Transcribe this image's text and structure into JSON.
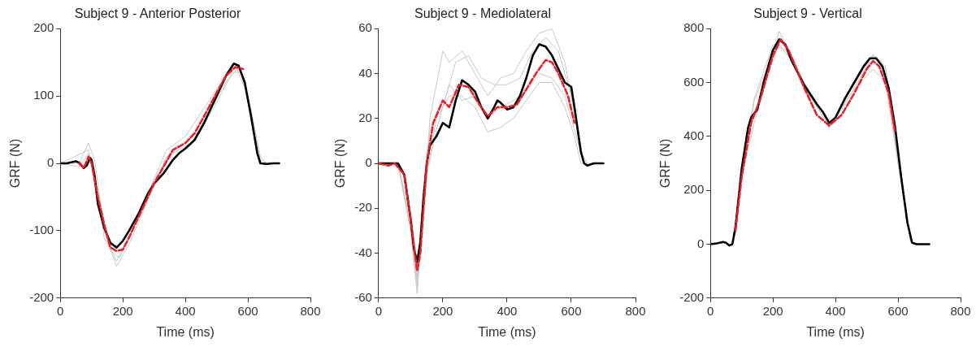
{
  "chart_data": [
    {
      "type": "line",
      "title": "Subject 9 - Anterior Posterior",
      "xlabel": "Time (ms)",
      "ylabel": "GRF (N)",
      "xlim": [
        0,
        800
      ],
      "xticks": [
        0,
        200,
        400,
        600,
        800
      ],
      "ylim": [
        -200,
        200
      ],
      "yticks": [
        -200,
        -100,
        0,
        100,
        200
      ],
      "grid": false,
      "legend": false,
      "marker": "none",
      "series": [
        {
          "color": "#c8c8c8",
          "x": [
            0,
            60,
            90,
            110,
            140,
            180,
            220,
            280,
            340,
            400,
            450,
            500,
            550,
            580,
            610,
            640,
            660
          ],
          "values": [
            0,
            0,
            30,
            5,
            -100,
            -153,
            -120,
            -55,
            10,
            30,
            50,
            90,
            135,
            135,
            80,
            5,
            0
          ]
        },
        {
          "color": "#c8c8c8",
          "x": [
            0,
            60,
            90,
            110,
            140,
            180,
            220,
            280,
            340,
            400,
            450,
            500,
            550,
            575,
            610,
            640
          ],
          "values": [
            0,
            -5,
            15,
            -10,
            -110,
            -145,
            -110,
            -45,
            20,
            40,
            75,
            110,
            140,
            142,
            70,
            0
          ]
        },
        {
          "color": "#c8c8c8",
          "x": [
            0,
            90,
            120,
            160,
            190,
            240,
            300,
            360,
            420,
            480,
            530,
            565,
            600,
            640,
            660
          ],
          "values": [
            0,
            20,
            -40,
            -130,
            -140,
            -90,
            -25,
            15,
            30,
            80,
            120,
            140,
            100,
            10,
            0
          ]
        },
        {
          "color": "#000000",
          "line_style": "solid",
          "x": [
            0,
            20,
            40,
            50,
            60,
            75,
            85,
            95,
            100,
            110,
            120,
            140,
            160,
            180,
            200,
            220,
            250,
            280,
            300,
            330,
            360,
            380,
            400,
            430,
            460,
            500,
            530,
            555,
            570,
            590,
            610,
            630,
            640,
            660,
            680,
            700
          ],
          "values": [
            0,
            0,
            2,
            3,
            1,
            -7,
            -3,
            8,
            5,
            -20,
            -60,
            -95,
            -118,
            -125,
            -115,
            -100,
            -75,
            -45,
            -30,
            -15,
            5,
            15,
            22,
            35,
            60,
            100,
            130,
            148,
            145,
            120,
            70,
            15,
            0,
            -1,
            0,
            0
          ]
        },
        {
          "color": "#e8202a",
          "line_style": "dashed",
          "x": [
            60,
            75,
            90,
            100,
            120,
            140,
            160,
            180,
            200,
            220,
            250,
            280,
            300,
            330,
            360,
            380,
            400,
            430,
            460,
            500,
            530,
            560,
            585
          ],
          "values": [
            0,
            -7,
            10,
            0,
            -50,
            -90,
            -125,
            -130,
            -128,
            -110,
            -80,
            -50,
            -30,
            -5,
            20,
            25,
            30,
            45,
            70,
            105,
            130,
            143,
            140
          ]
        }
      ]
    },
    {
      "type": "line",
      "title": "Subject 9 - Mediolateral",
      "xlabel": "Time (ms)",
      "ylabel": "GRF (N)",
      "xlim": [
        0,
        800
      ],
      "xticks": [
        0,
        200,
        400,
        600,
        800
      ],
      "ylim": [
        -60,
        60
      ],
      "yticks": [
        -60,
        -40,
        -20,
        0,
        20,
        40,
        60
      ],
      "grid": false,
      "legend": false,
      "marker": "none",
      "series": [
        {
          "color": "#c8c8c8",
          "x": [
            0,
            60,
            100,
            120,
            140,
            160,
            200,
            220,
            260,
            300,
            340,
            380,
            420,
            460,
            500,
            540,
            580,
            620,
            640,
            660
          ],
          "values": [
            0,
            0,
            -30,
            -58,
            -20,
            20,
            50,
            45,
            50,
            40,
            30,
            38,
            40,
            50,
            58,
            60,
            45,
            15,
            0,
            0
          ]
        },
        {
          "color": "#c8c8c8",
          "x": [
            0,
            60,
            100,
            120,
            140,
            160,
            200,
            240,
            280,
            320,
            360,
            400,
            440,
            480,
            520,
            560,
            600,
            630,
            650
          ],
          "values": [
            0,
            0,
            -30,
            -55,
            -15,
            15,
            25,
            45,
            48,
            38,
            35,
            35,
            38,
            50,
            56,
            50,
            30,
            5,
            0
          ]
        },
        {
          "color": "#c8c8c8",
          "x": [
            0,
            60,
            100,
            120,
            150,
            180,
            220,
            260,
            300,
            340,
            380,
            420,
            460,
            500,
            540,
            580,
            610,
            630,
            650
          ],
          "values": [
            0,
            0,
            -25,
            -50,
            -5,
            20,
            30,
            30,
            25,
            14,
            16,
            20,
            28,
            36,
            36,
            25,
            12,
            0,
            0
          ]
        },
        {
          "color": "#c8c8c8",
          "x": [
            0,
            60,
            100,
            120,
            150,
            180,
            220,
            260,
            300,
            340,
            380,
            420,
            460,
            500,
            540,
            580,
            610,
            640
          ],
          "values": [
            0,
            0,
            -28,
            -52,
            -5,
            15,
            35,
            28,
            30,
            20,
            25,
            28,
            32,
            40,
            38,
            30,
            15,
            0
          ]
        },
        {
          "color": "#000000",
          "line_style": "solid",
          "x": [
            0,
            30,
            60,
            80,
            100,
            110,
            120,
            130,
            140,
            150,
            160,
            180,
            200,
            220,
            240,
            260,
            280,
            300,
            320,
            340,
            360,
            370,
            380,
            400,
            420,
            440,
            460,
            480,
            500,
            520,
            540,
            560,
            580,
            600,
            610,
            620,
            630,
            640,
            650,
            670,
            700
          ],
          "values": [
            0,
            0,
            0,
            -5,
            -25,
            -38,
            -44,
            -35,
            -15,
            0,
            8,
            12,
            18,
            16,
            28,
            37,
            35,
            32,
            25,
            20,
            25,
            28,
            27,
            24,
            25,
            30,
            38,
            48,
            53,
            52,
            48,
            42,
            36,
            34,
            25,
            15,
            5,
            0,
            -1,
            0,
            0
          ]
        },
        {
          "color": "#e8202a",
          "line_style": "dashed",
          "x": [
            0,
            30,
            50,
            80,
            100,
            120,
            130,
            150,
            170,
            200,
            220,
            250,
            280,
            310,
            340,
            370,
            400,
            430,
            460,
            490,
            520,
            540,
            560,
            590,
            610
          ],
          "values": [
            0,
            -1,
            0,
            -5,
            -25,
            -48,
            -40,
            0,
            18,
            28,
            25,
            35,
            34,
            27,
            21,
            25,
            25,
            26,
            33,
            40,
            46,
            45,
            40,
            30,
            18
          ]
        }
      ]
    },
    {
      "type": "line",
      "title": "Subject 9 - Vertical",
      "xlabel": "Time (ms)",
      "ylabel": "GRF (N)",
      "xlim": [
        0,
        800
      ],
      "xticks": [
        0,
        200,
        400,
        600,
        800
      ],
      "ylim": [
        -200,
        800
      ],
      "yticks": [
        -200,
        0,
        200,
        400,
        600,
        800
      ],
      "grid": false,
      "legend": false,
      "marker": "none",
      "series": [
        {
          "color": "#c8c8c8",
          "x": [
            70,
            100,
            140,
            180,
            220,
            260,
            300,
            380,
            420,
            460,
            520,
            560,
            600,
            640,
            660
          ],
          "values": [
            0,
            250,
            530,
            650,
            790,
            700,
            600,
            450,
            500,
            580,
            700,
            650,
            300,
            10,
            0
          ]
        },
        {
          "color": "#c8c8c8",
          "x": [
            70,
            100,
            140,
            180,
            220,
            260,
            300,
            380,
            450,
            520,
            560,
            600,
            640
          ],
          "values": [
            0,
            250,
            450,
            620,
            740,
            680,
            580,
            440,
            560,
            650,
            600,
            300,
            10
          ]
        },
        {
          "color": "#c8c8c8",
          "x": [
            70,
            100,
            140,
            200,
            240,
            300,
            380,
            450,
            520,
            560,
            600,
            640
          ],
          "values": [
            0,
            260,
            540,
            740,
            720,
            600,
            430,
            580,
            705,
            660,
            320,
            10
          ]
        },
        {
          "color": "#000000",
          "line_style": "solid",
          "x": [
            0,
            20,
            40,
            50,
            60,
            70,
            80,
            100,
            120,
            130,
            150,
            170,
            200,
            220,
            240,
            260,
            300,
            340,
            360,
            380,
            400,
            430,
            460,
            490,
            510,
            530,
            550,
            570,
            590,
            610,
            630,
            645,
            660,
            700
          ],
          "values": [
            0,
            3,
            8,
            5,
            -5,
            0,
            60,
            280,
            430,
            470,
            500,
            600,
            720,
            760,
            740,
            680,
            590,
            520,
            490,
            450,
            470,
            540,
            600,
            660,
            690,
            690,
            660,
            580,
            440,
            250,
            80,
            5,
            0,
            0
          ]
        },
        {
          "color": "#e8202a",
          "line_style": "dashed",
          "x": [
            80,
            100,
            130,
            160,
            200,
            225,
            250,
            300,
            340,
            380,
            420,
            460,
            500,
            520,
            540,
            570,
            590
          ],
          "values": [
            50,
            250,
            450,
            540,
            700,
            760,
            720,
            580,
            480,
            440,
            480,
            560,
            650,
            680,
            660,
            560,
            420
          ]
        }
      ]
    }
  ]
}
